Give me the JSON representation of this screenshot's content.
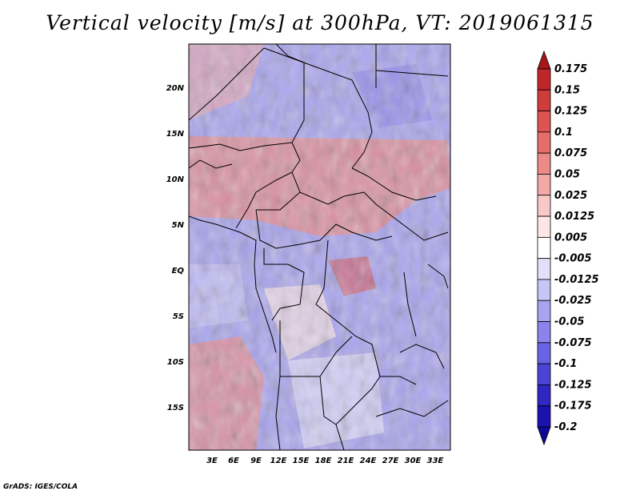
{
  "title": "Vertical velocity [m/s] at 300hPa, VT: 2019061315",
  "credit": "GrADS: IGES/COLA",
  "lat_labels": [
    "20N",
    "15N",
    "10N",
    "5N",
    "EQ",
    "5S",
    "10S",
    "15S"
  ],
  "lon_labels": [
    "3E",
    "6E",
    "9E",
    "12E",
    "15E",
    "18E",
    "21E",
    "24E",
    "27E",
    "30E",
    "33E"
  ],
  "colorbar": {
    "levels": [
      "0.175",
      "0.15",
      "0.125",
      "0.1",
      "0.075",
      "0.05",
      "0.025",
      "0.0125",
      "0.005",
      "-0.005",
      "-0.0125",
      "-0.025",
      "-0.05",
      "-0.075",
      "-0.1",
      "-0.125",
      "-0.175",
      "-0.2"
    ],
    "colors": [
      "#a8161a",
      "#c0262a",
      "#d03b3b",
      "#de5252",
      "#e56d6b",
      "#ec8a87",
      "#f3aaa7",
      "#f8c9c6",
      "#fde6e4",
      "#ffffff",
      "#e2e0fb",
      "#c7c4f6",
      "#a9a4f0",
      "#8a84ea",
      "#6a63e3",
      "#4b44d6",
      "#2f27c3",
      "#1a12ad",
      "#0e0896"
    ]
  }
}
